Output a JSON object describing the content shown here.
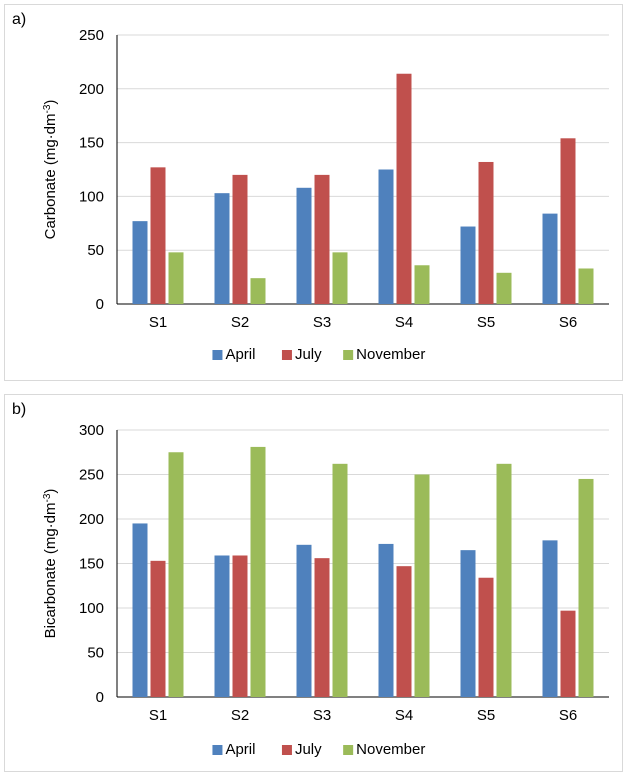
{
  "chart_data": [
    {
      "panel_label": "a)",
      "type": "bar",
      "categories": [
        "S1",
        "S2",
        "S3",
        "S4",
        "S5",
        "S6"
      ],
      "series": [
        {
          "name": "April",
          "color": "#4f81bd",
          "values": [
            77,
            103,
            108,
            125,
            72,
            84
          ]
        },
        {
          "name": "July",
          "color": "#c0504d",
          "values": [
            127,
            120,
            120,
            214,
            132,
            154
          ]
        },
        {
          "name": "November",
          "color": "#9bbb59",
          "values": [
            48,
            24,
            48,
            36,
            29,
            33
          ]
        }
      ],
      "ylabel_main": "Carbonate (mg·dm",
      "ylabel_sup": "-3",
      "ylabel_end": ")",
      "ylim": [
        0,
        250
      ],
      "yticks": [
        "0",
        "50",
        "100",
        "150",
        "200",
        "250"
      ],
      "grid": true,
      "legend": "bottom"
    },
    {
      "panel_label": "b)",
      "type": "bar",
      "categories": [
        "S1",
        "S2",
        "S3",
        "S4",
        "S5",
        "S6"
      ],
      "series": [
        {
          "name": "April",
          "color": "#4f81bd",
          "values": [
            195,
            159,
            171,
            172,
            165,
            176
          ]
        },
        {
          "name": "July",
          "color": "#c0504d",
          "values": [
            153,
            159,
            156,
            147,
            134,
            97
          ]
        },
        {
          "name": "November",
          "color": "#9bbb59",
          "values": [
            275,
            281,
            262,
            250,
            262,
            245
          ]
        }
      ],
      "ylabel_main": "Bicarbonate (mg·dm",
      "ylabel_sup": "-3",
      "ylabel_end": ")",
      "ylim": [
        0,
        300
      ],
      "yticks": [
        "0",
        "50",
        "100",
        "150",
        "200",
        "250",
        "300"
      ],
      "grid": true,
      "legend": "bottom"
    }
  ]
}
